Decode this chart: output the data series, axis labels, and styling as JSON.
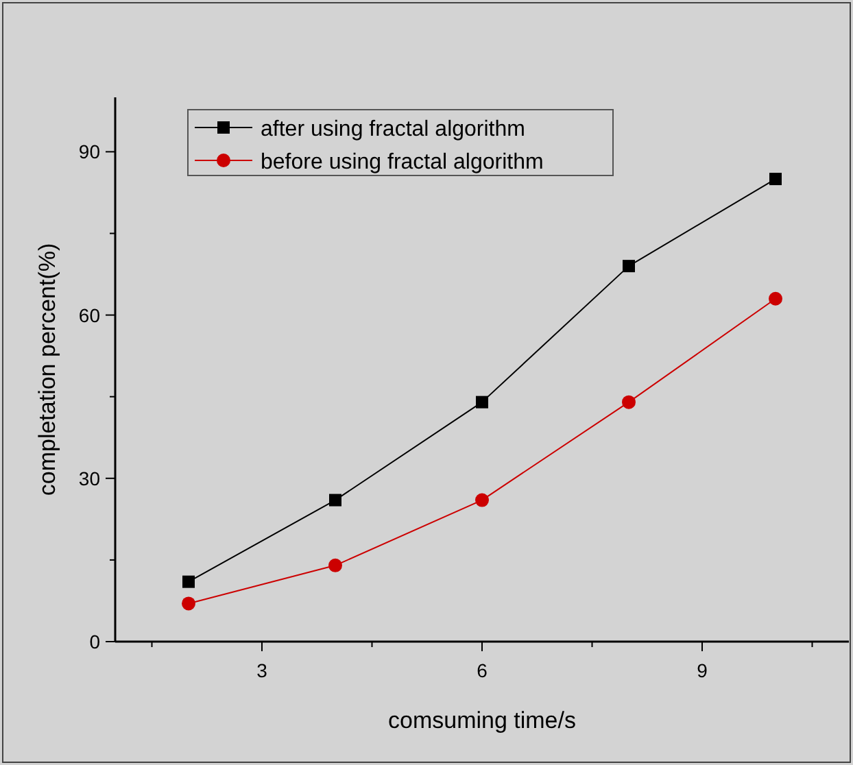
{
  "chart_data": {
    "type": "line",
    "xlabel": "comsuming time/s",
    "ylabel": "completation percent(%)",
    "x": [
      2,
      4,
      6,
      8,
      10
    ],
    "xlim": [
      1,
      11
    ],
    "xticks": [
      {
        "value": 1.5,
        "label": null
      },
      3,
      {
        "value": 4.5,
        "label": null
      },
      6,
      {
        "value": 7.5,
        "label": null
      },
      9,
      {
        "value": 10.5,
        "label": null
      }
    ],
    "ylim": [
      0,
      100
    ],
    "yticks": [
      0,
      {
        "value": 15,
        "label": null
      },
      30,
      {
        "value": 45,
        "label": null
      },
      60,
      {
        "value": 75,
        "label": null
      },
      90
    ],
    "series": [
      {
        "name": "after using fractal algorithm",
        "color": "#000000",
        "marker": "square",
        "values": [
          11,
          26,
          44,
          69,
          85
        ]
      },
      {
        "name": "before using fractal algorithm",
        "color": "#cc0000",
        "marker": "circle",
        "values": [
          7,
          14,
          26,
          44,
          63
        ]
      }
    ],
    "legend": "top left",
    "grid": false
  }
}
